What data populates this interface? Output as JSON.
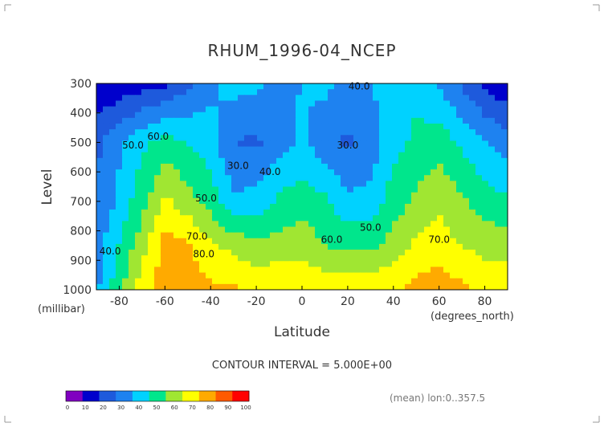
{
  "chart_data": {
    "type": "heatmap",
    "subtype": "filled-contour",
    "title": "RHUM_1996-04_NCEP",
    "xlabel": "Latitude",
    "ylabel": "Level",
    "x_unit": "(degrees_north)",
    "y_unit": "(millibar)",
    "xlim": [
      -90,
      90
    ],
    "ylim": [
      1000,
      300
    ],
    "y_inverted": true,
    "x_ticks": [
      -80,
      -60,
      -40,
      -20,
      0,
      20,
      40,
      60,
      80
    ],
    "y_ticks": [
      300,
      400,
      500,
      600,
      700,
      800,
      900,
      1000
    ],
    "grid": false,
    "contour_interval_note": "CONTOUR INTERVAL = 5.000E+00",
    "footer_note": "(mean) lon:0..357.5",
    "colorbar": {
      "levels": [
        0,
        10,
        20,
        30,
        40,
        50,
        60,
        70,
        80,
        90,
        100
      ],
      "colors": [
        "#8000c0",
        "#0000cc",
        "#1e5adc",
        "#1e82f0",
        "#00d2ff",
        "#00e68c",
        "#a0e632",
        "#ffff00",
        "#ffaa00",
        "#ff5a00",
        "#ff0000"
      ],
      "placement": "bottom-left"
    },
    "contour_labels": [
      {
        "text": "40.0",
        "lat": 25,
        "level": 320
      },
      {
        "text": "30.0",
        "lat": 20,
        "level": 520
      },
      {
        "text": "30.0",
        "lat": -28,
        "level": 590
      },
      {
        "text": "40.0",
        "lat": -14,
        "level": 610
      },
      {
        "text": "50.0",
        "lat": -74,
        "level": 520
      },
      {
        "text": "60.0",
        "lat": -63,
        "level": 490
      },
      {
        "text": "50.0",
        "lat": -42,
        "level": 700
      },
      {
        "text": "70.0",
        "lat": -46,
        "level": 830
      },
      {
        "text": "80.0",
        "lat": -43,
        "level": 890
      },
      {
        "text": "60.0",
        "lat": 13,
        "level": 840
      },
      {
        "text": "50.0",
        "lat": 30,
        "level": 800
      },
      {
        "text": "70.0",
        "lat": 60,
        "level": 840
      },
      {
        "text": "40.0",
        "lat": -84,
        "level": 880
      }
    ],
    "bands": [
      {
        "level": 300,
        "lat": [
          -90,
          -60,
          -40,
          -30,
          -20,
          -10,
          0,
          10,
          20,
          30,
          40,
          50,
          60,
          70,
          80,
          90
        ],
        "rhum": [
          10,
          18,
          38,
          44,
          42,
          38,
          40,
          42,
          38,
          40,
          45,
          48,
          38,
          28,
          18,
          12
        ]
      },
      {
        "level": 500,
        "lat": [
          -90,
          -70,
          -60,
          -40,
          -30,
          -20,
          -10,
          0,
          10,
          20,
          30,
          40,
          50,
          60,
          70,
          80,
          90
        ],
        "rhum": [
          28,
          48,
          55,
          44,
          30,
          28,
          36,
          42,
          34,
          28,
          34,
          46,
          52,
          56,
          48,
          40,
          34
        ]
      },
      {
        "level": 700,
        "lat": [
          -90,
          -70,
          -60,
          -40,
          -30,
          -20,
          -10,
          0,
          10,
          20,
          30,
          40,
          50,
          60,
          70,
          80,
          90
        ],
        "rhum": [
          30,
          56,
          72,
          56,
          42,
          44,
          52,
          56,
          52,
          42,
          44,
          55,
          62,
          68,
          62,
          55,
          52
        ]
      },
      {
        "level": 850,
        "lat": [
          -90,
          -70,
          -60,
          -50,
          -40,
          -20,
          0,
          10,
          20,
          30,
          40,
          50,
          60,
          70,
          80,
          90
        ],
        "rhum": [
          35,
          66,
          84,
          82,
          72,
          62,
          66,
          60,
          58,
          58,
          64,
          72,
          74,
          70,
          66,
          66
        ]
      },
      {
        "level": 1000,
        "lat": [
          -90,
          -70,
          -60,
          -50,
          -40,
          -20,
          0,
          20,
          40,
          50,
          60,
          70,
          80,
          90
        ],
        "rhum": [
          38,
          75,
          86,
          85,
          82,
          80,
          78,
          76,
          78,
          84,
          86,
          82,
          78,
          76
        ]
      }
    ],
    "colorbar_tick_labels": [
      "0",
      "10",
      "20",
      "30",
      "40",
      "50",
      "60",
      "70",
      "80",
      "90",
      "100"
    ],
    "x_tick_labels": [
      "-80",
      "-60",
      "-40",
      "-20",
      "0",
      "20",
      "40",
      "60",
      "80"
    ],
    "y_tick_labels": [
      "300",
      "400",
      "500",
      "600",
      "700",
      "800",
      "900",
      "1000"
    ]
  }
}
